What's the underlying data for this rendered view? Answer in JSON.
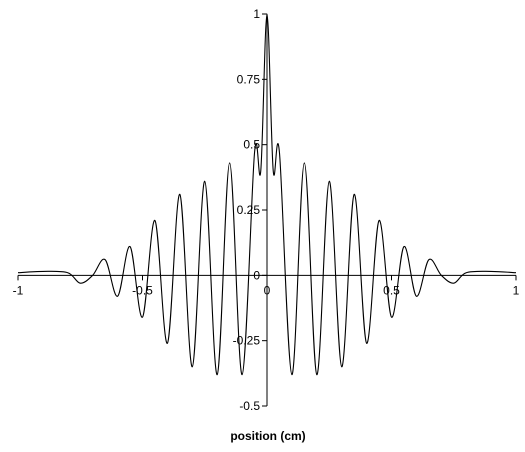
{
  "chart_data": {
    "type": "line",
    "title": "",
    "xlabel": "position (cm)",
    "ylabel": "",
    "xlim": [
      -1,
      1
    ],
    "ylim": [
      -0.5,
      1
    ],
    "xticks": [
      -1,
      -0.5,
      0,
      0.5,
      1
    ],
    "xtick_labels": [
      "-1",
      "-0.5",
      "0",
      "0.5",
      "1"
    ],
    "yticks": [
      -0.5,
      -0.25,
      0,
      0.25,
      0.5,
      0.75,
      1
    ],
    "ytick_labels": [
      "-0.5",
      "-0.25",
      "0",
      "0.25",
      "0.5",
      "0.75",
      "1"
    ],
    "grid": false,
    "legend": "none",
    "line_color": "#000000",
    "series": [
      {
        "x": [
          -1.0,
          -0.9,
          -0.8,
          -0.75,
          -0.7,
          -0.65,
          -0.6,
          -0.55,
          -0.5,
          -0.45,
          -0.4,
          -0.35,
          -0.3,
          -0.25,
          -0.2,
          -0.15,
          -0.1,
          -0.05,
          -0.025,
          0.0,
          0.025,
          0.05,
          0.1,
          0.15,
          0.2,
          0.25,
          0.3,
          0.35,
          0.4,
          0.45,
          0.5,
          0.55,
          0.6,
          0.65,
          0.7,
          0.75,
          0.8,
          0.9,
          1.0
        ],
        "y": [
          0.01,
          0.015,
          0.01,
          -0.03,
          0.0,
          0.06,
          -0.08,
          0.11,
          -0.16,
          0.21,
          -0.26,
          0.31,
          -0.35,
          0.36,
          -0.38,
          0.43,
          -0.38,
          0.47,
          0.4,
          1.0,
          0.4,
          0.47,
          -0.38,
          0.43,
          -0.38,
          0.36,
          -0.35,
          0.31,
          -0.26,
          0.21,
          -0.16,
          0.11,
          -0.08,
          0.06,
          0.0,
          -0.03,
          0.01,
          0.015,
          0.01
        ]
      }
    ]
  }
}
